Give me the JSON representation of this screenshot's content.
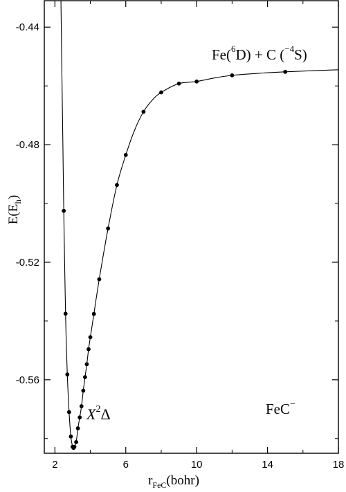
{
  "chart_data": {
    "type": "scatter",
    "xlim": [
      1.4,
      18
    ],
    "ylim": [
      -0.585,
      -0.431
    ],
    "x_ticks": [
      2,
      6,
      10,
      14,
      18
    ],
    "x_minor_ticks": [
      4,
      8,
      12,
      16
    ],
    "y_ticks": [
      -0.44,
      -0.48,
      -0.52,
      -0.56
    ],
    "y_minor_ticks": [
      -0.46,
      -0.5,
      -0.54,
      -0.58
    ],
    "x_tick_labels": [
      "2",
      "6",
      "10",
      "14",
      "18"
    ],
    "y_tick_labels": [
      "-0.44",
      "-0.48",
      "-0.52",
      "-0.56"
    ],
    "xlabel": {
      "main": "r",
      "sub": "FeC",
      "tail": "(bohr)"
    },
    "ylabel": {
      "main": "E(E",
      "sub": "h",
      "tail": ")"
    },
    "grid": false,
    "legend": "none",
    "colors": {
      "points": "#000000",
      "curve": "#000000",
      "frame": "#000000"
    },
    "series": [
      {
        "points": [
          [
            2.5,
            -0.5025
          ],
          [
            2.6,
            -0.5375
          ],
          [
            2.7,
            -0.5582
          ],
          [
            2.8,
            -0.571
          ],
          [
            2.9,
            -0.5793
          ],
          [
            3.0,
            -0.5828
          ],
          [
            3.05,
            -0.5832
          ],
          [
            3.1,
            -0.5828
          ],
          [
            3.2,
            -0.5812
          ],
          [
            3.3,
            -0.5765
          ],
          [
            3.4,
            -0.5728
          ],
          [
            3.5,
            -0.569
          ],
          [
            3.6,
            -0.5637
          ],
          [
            3.7,
            -0.5591
          ],
          [
            3.8,
            -0.5547
          ],
          [
            3.9,
            -0.5496
          ],
          [
            4.0,
            -0.5455
          ],
          [
            4.2,
            -0.5376
          ],
          [
            4.5,
            -0.5258
          ],
          [
            5.0,
            -0.5085
          ],
          [
            5.5,
            -0.4937
          ],
          [
            6.0,
            -0.4835
          ],
          [
            7.0,
            -0.4688
          ],
          [
            8.0,
            -0.4622
          ],
          [
            9.0,
            -0.4592
          ],
          [
            10.0,
            -0.4585
          ],
          [
            12.0,
            -0.4564
          ],
          [
            15.0,
            -0.4552
          ]
        ],
        "curve": [
          [
            2.34,
            -0.431
          ],
          [
            2.38,
            -0.45
          ],
          [
            2.45,
            -0.48
          ],
          [
            2.5,
            -0.5025
          ],
          [
            2.6,
            -0.5375
          ],
          [
            2.7,
            -0.5582
          ],
          [
            2.8,
            -0.571
          ],
          [
            2.9,
            -0.5793
          ],
          [
            3.0,
            -0.5828
          ],
          [
            3.05,
            -0.5832
          ],
          [
            3.1,
            -0.5828
          ],
          [
            3.2,
            -0.5812
          ],
          [
            3.3,
            -0.5765
          ],
          [
            3.4,
            -0.5728
          ],
          [
            3.5,
            -0.569
          ],
          [
            3.6,
            -0.5637
          ],
          [
            3.7,
            -0.5591
          ],
          [
            3.8,
            -0.5547
          ],
          [
            3.9,
            -0.5496
          ],
          [
            4.0,
            -0.5455
          ],
          [
            4.2,
            -0.5376
          ],
          [
            4.5,
            -0.5258
          ],
          [
            5.0,
            -0.5085
          ],
          [
            5.5,
            -0.4937
          ],
          [
            6.0,
            -0.4835
          ],
          [
            6.5,
            -0.475
          ],
          [
            7.0,
            -0.4688
          ],
          [
            7.5,
            -0.4648
          ],
          [
            8.0,
            -0.4622
          ],
          [
            9.0,
            -0.4592
          ],
          [
            10.0,
            -0.4585
          ],
          [
            11.0,
            -0.4573
          ],
          [
            12.0,
            -0.4564
          ],
          [
            13.5,
            -0.4557
          ],
          [
            15.0,
            -0.4552
          ],
          [
            18.0,
            -0.4545
          ]
        ]
      }
    ],
    "annotations": {
      "asymptote": {
        "t1": "Fe(",
        "s1": "6",
        "t2": "D) + C (",
        "s2": "−4",
        "t3": "S)"
      },
      "state": {
        "t1": "X",
        "s1": "2",
        "t2": "Δ"
      },
      "molecule": {
        "t1": "FeC",
        "s1": "−"
      }
    }
  }
}
